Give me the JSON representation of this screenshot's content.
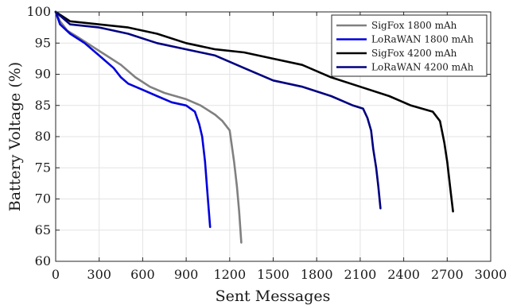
{
  "chart_data": {
    "type": "line",
    "xlabel": "Sent Messages",
    "ylabel": "Battery Voltage (%)",
    "xlim": [
      0,
      3000
    ],
    "ylim": [
      60,
      100
    ],
    "xticks": [
      0,
      300,
      600,
      900,
      1200,
      1500,
      1800,
      2100,
      2400,
      2700,
      3000
    ],
    "yticks": [
      60,
      65,
      70,
      75,
      80,
      85,
      90,
      95,
      100
    ],
    "grid": true,
    "legend_position": "top-right",
    "series": [
      {
        "name": "SigFox 1800 mAh",
        "color": "#808080",
        "x": [
          0,
          30,
          80,
          150,
          250,
          350,
          450,
          550,
          650,
          750,
          900,
          1000,
          1100,
          1150,
          1200,
          1230,
          1250,
          1265,
          1280
        ],
        "y": [
          100,
          98.5,
          97,
          96,
          94.5,
          93,
          91.5,
          89.5,
          88,
          87,
          86,
          85,
          83.5,
          82.5,
          81,
          76,
          72,
          68,
          63
        ]
      },
      {
        "name": "LoRaWAN 1800 mAh",
        "color": "#0000dd",
        "x": [
          0,
          30,
          100,
          200,
          300,
          400,
          450,
          500,
          550,
          600,
          700,
          800,
          900,
          960,
          990,
          1010,
          1030,
          1050,
          1065
        ],
        "y": [
          100,
          98,
          96.5,
          95,
          93,
          91,
          89.5,
          88.5,
          88,
          87.5,
          86.5,
          85.5,
          85,
          84,
          82,
          80,
          76,
          70,
          65.5
        ]
      },
      {
        "name": "SigFox 4200 mAh",
        "color": "#000000",
        "x": [
          0,
          100,
          300,
          500,
          700,
          900,
          1100,
          1300,
          1500,
          1700,
          1900,
          2100,
          2300,
          2450,
          2600,
          2650,
          2680,
          2700,
          2720,
          2740
        ],
        "y": [
          100,
          98.5,
          98,
          97.5,
          96.5,
          95,
          94,
          93.5,
          92.5,
          91.5,
          89.5,
          88,
          86.5,
          85,
          84,
          82.5,
          79,
          76,
          72,
          68
        ]
      },
      {
        "name": "LoRaWAN 4200 mAh",
        "color": "#000080",
        "x": [
          0,
          100,
          300,
          500,
          700,
          900,
          1100,
          1300,
          1500,
          1700,
          1900,
          2050,
          2120,
          2150,
          2175,
          2190,
          2210,
          2225,
          2240
        ],
        "y": [
          100,
          98,
          97.5,
          96.5,
          95,
          94,
          93,
          91,
          89,
          88,
          86.5,
          85,
          84.5,
          83,
          81,
          78,
          75,
          72,
          68.5
        ]
      }
    ]
  }
}
